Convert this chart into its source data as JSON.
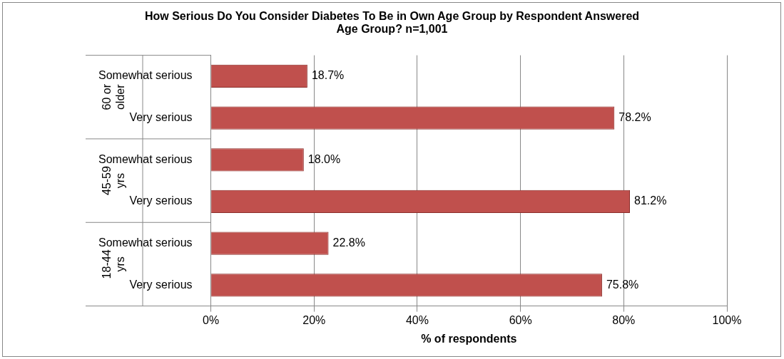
{
  "chart_data": {
    "type": "bar",
    "orientation": "horizontal",
    "title": "How Serious Do You Consider Diabetes To Be in Own Age Group by Respondent Answered Age Group? n=1,001",
    "xlabel": "% of respondents",
    "categories": [
      "Somewhat serious",
      "Very serious",
      "Somewhat serious",
      "Very serious",
      "Somewhat serious",
      "Very serious"
    ],
    "values": [
      18.7,
      78.2,
      18.0,
      81.2,
      22.8,
      75.8
    ],
    "value_labels": [
      "18.7%",
      "78.2%",
      "18.0%",
      "81.2%",
      "22.8%",
      "75.8%"
    ],
    "color": "#c0504d",
    "xlim": [
      0,
      100
    ],
    "xticks": [
      {
        "value": 0,
        "label": "0%"
      },
      {
        "value": 20,
        "label": "20%"
      },
      {
        "value": 40,
        "label": "40%"
      },
      {
        "value": 60,
        "label": "60%"
      },
      {
        "value": 80,
        "label": "80%"
      },
      {
        "value": 100,
        "label": "100%"
      }
    ],
    "annotations": [
      "60 or older",
      "45-59 yrs",
      "18-44 yrs"
    ],
    "grid": "x",
    "legend": false
  }
}
